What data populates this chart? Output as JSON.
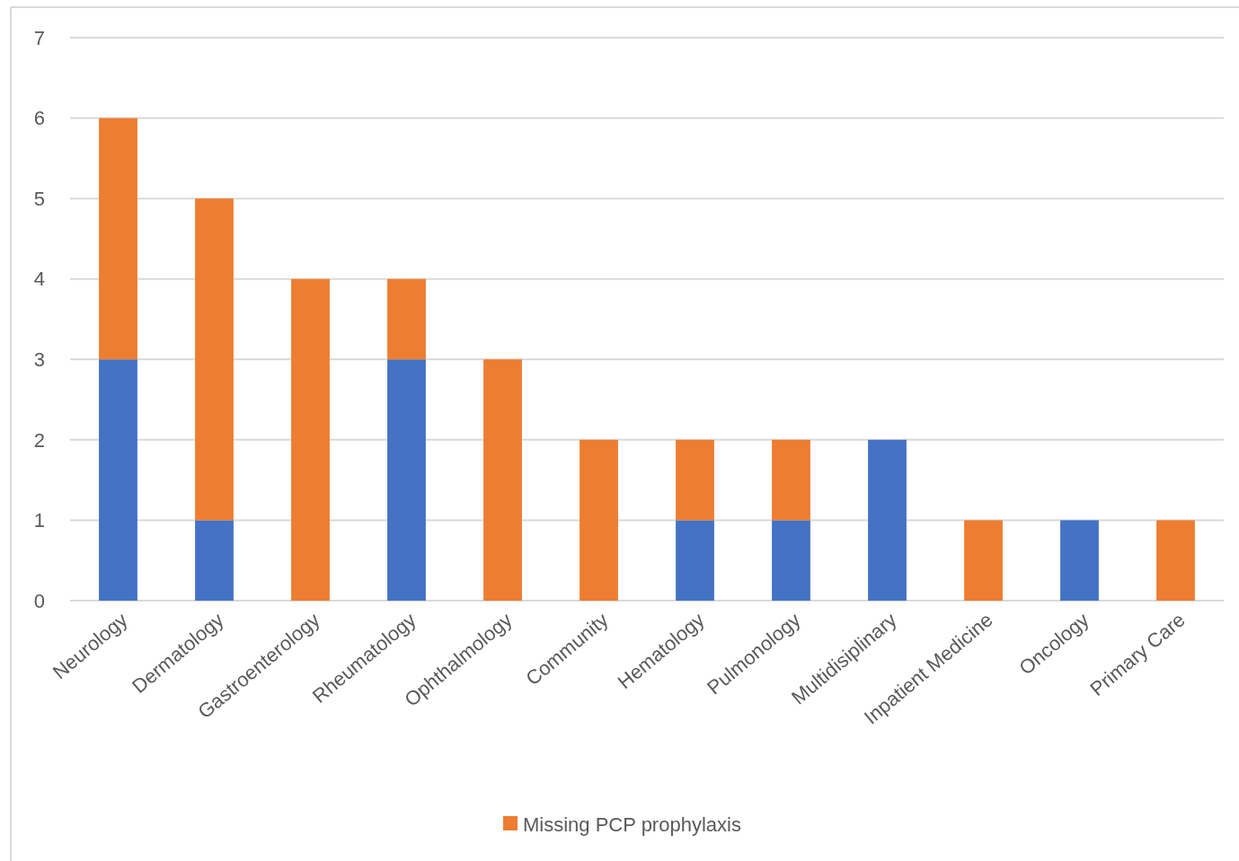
{
  "chart_data": {
    "type": "bar",
    "stacked": true,
    "categories": [
      "Neurology",
      "Dermatology",
      "Gastroenterology",
      "Rheumatology",
      "Ophthalmology",
      "Community",
      "Hematology",
      "Pulmonology",
      "Multidisiplinary",
      "Inpatient Medicine",
      "Oncology",
      "Primary Care"
    ],
    "series": [
      {
        "color": "#4472c4",
        "values": [
          3,
          1,
          0,
          3,
          0,
          0,
          1,
          1,
          2,
          0,
          1,
          0
        ]
      },
      {
        "name": "Missing PCP prophylaxis",
        "color": "#ed7d31",
        "values": [
          3,
          4,
          4,
          1,
          3,
          2,
          1,
          1,
          0,
          1,
          0,
          1
        ]
      }
    ],
    "ylim": [
      0,
      7
    ],
    "yticks": [
      0,
      1,
      2,
      3,
      4,
      5,
      6,
      7
    ],
    "grid": "y",
    "legend": "bottom"
  }
}
